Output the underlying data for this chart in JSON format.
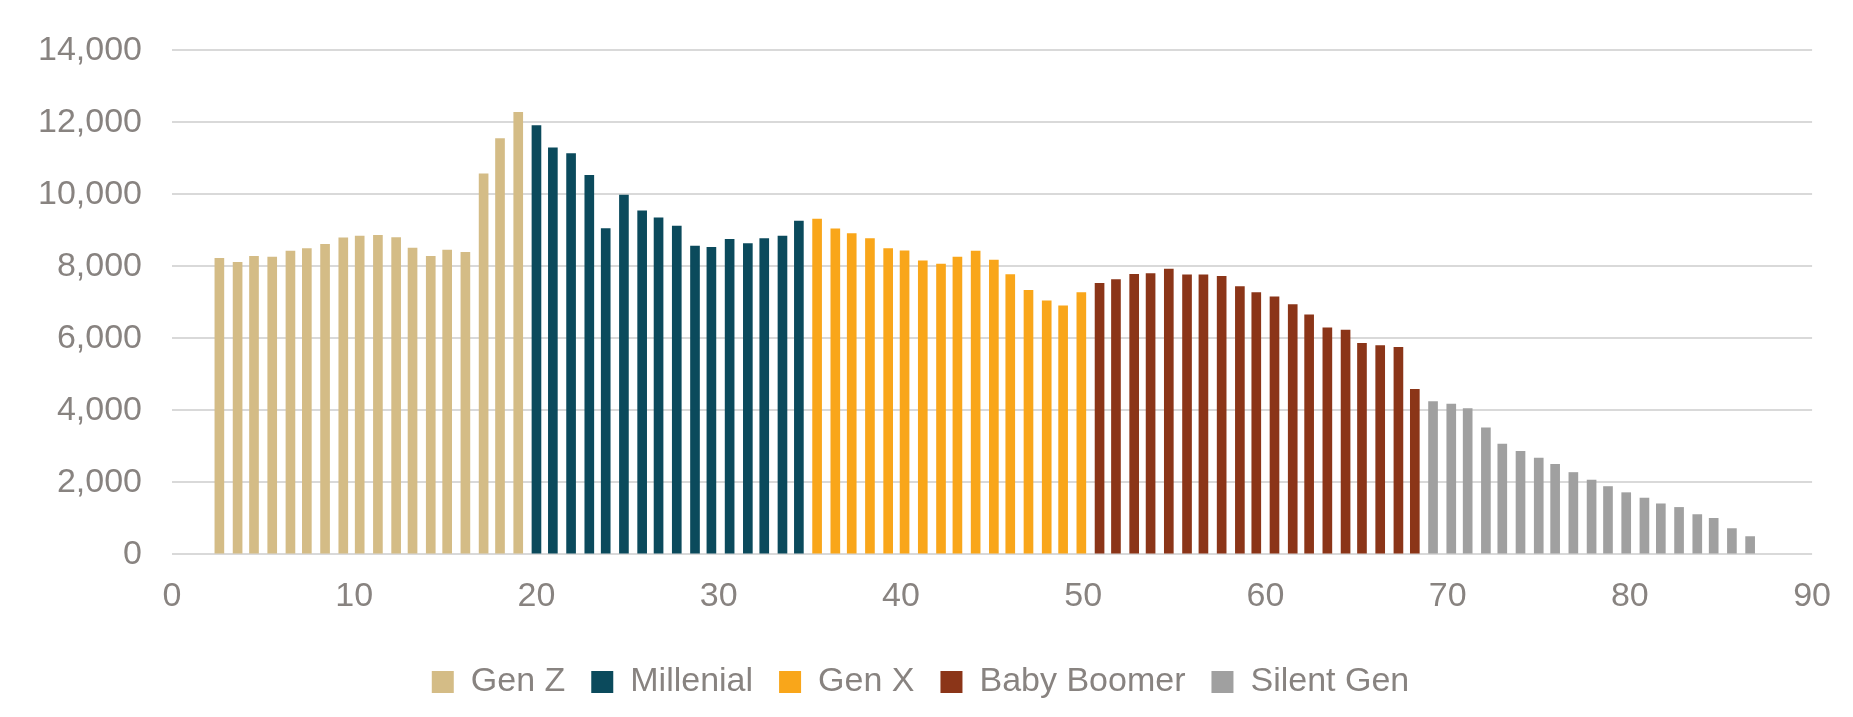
{
  "chart_data": {
    "type": "bar",
    "xlim": [
      0,
      90
    ],
    "xticks": [
      0,
      10,
      20,
      30,
      40,
      50,
      60,
      70,
      80,
      90
    ],
    "ylim": [
      0,
      14000
    ],
    "yticks": [
      0,
      {
        "value": 2000,
        "label": "2,000"
      },
      {
        "value": 4000,
        "label": "4,000"
      },
      {
        "value": 6000,
        "label": "6,000"
      },
      {
        "value": 8000,
        "label": "8,000"
      },
      {
        "value": 10000,
        "label": "10,000"
      },
      {
        "value": 12000,
        "label": "12,000"
      },
      {
        "value": 14000,
        "label": "14,000"
      }
    ],
    "grid": "y",
    "legend": "bottom",
    "series": [
      {
        "name": "Gen Z",
        "color": "#d4bc86",
        "x": [
          2.6,
          3.6,
          4.5,
          5.5,
          6.5,
          7.4,
          8.4,
          9.4,
          10.3,
          11.3,
          12.3,
          13.2,
          14.2,
          15.1,
          16.1,
          17.1,
          18.0,
          19.0
        ],
        "values": [
          8220,
          8110,
          8280,
          8260,
          8420,
          8490,
          8610,
          8790,
          8840,
          8860,
          8800,
          8510,
          8280,
          8450,
          8390,
          10570,
          11550,
          12280
        ]
      },
      {
        "name": "Millenial",
        "color": "#0b4a5c",
        "x": [
          20.0,
          20.9,
          21.9,
          22.9,
          23.8,
          24.8,
          25.8,
          26.7,
          27.7,
          28.7,
          29.6,
          30.6,
          31.6,
          32.5,
          33.5,
          34.4
        ],
        "values": [
          11910,
          11290,
          11130,
          10530,
          9050,
          9980,
          9540,
          9350,
          9120,
          8560,
          8530,
          8750,
          8630,
          8770,
          8840,
          9260
        ]
      },
      {
        "name": "Gen X",
        "color": "#f9a61a",
        "x": [
          35.4,
          36.4,
          37.3,
          38.3,
          39.3,
          40.2,
          41.2,
          42.2,
          43.1,
          44.1,
          45.1,
          46.0,
          47.0,
          48.0,
          48.9,
          49.9
        ],
        "values": [
          9310,
          9040,
          8910,
          8770,
          8490,
          8430,
          8150,
          8060,
          8260,
          8420,
          8170,
          7770,
          7330,
          7040,
          6900,
          7270
        ]
      },
      {
        "name": "Baby Boomer",
        "color": "#8b3518",
        "x": [
          50.9,
          51.8,
          52.8,
          53.7,
          54.7,
          55.7,
          56.6,
          57.6,
          58.6,
          59.5,
          60.5,
          61.5,
          62.4,
          63.4,
          64.4,
          65.3,
          66.3,
          67.3,
          68.2
        ],
        "values": [
          7530,
          7630,
          7780,
          7800,
          7920,
          7760,
          7760,
          7720,
          7440,
          7270,
          7150,
          6940,
          6650,
          6290,
          6230,
          5860,
          5800,
          5750,
          4580
        ]
      },
      {
        "name": "Silent Gen",
        "color": "#a0a0a0",
        "x": [
          69.2,
          70.2,
          71.1,
          72.1,
          73.0,
          74.0,
          75.0,
          75.9,
          76.9,
          77.9,
          78.8,
          79.8,
          80.8,
          81.7,
          82.7,
          83.7,
          84.6,
          85.6,
          86.6
        ],
        "values": [
          4240,
          4170,
          4050,
          3510,
          3060,
          2860,
          2670,
          2500,
          2270,
          2060,
          1880,
          1710,
          1560,
          1400,
          1300,
          1100,
          1000,
          710,
          490
        ]
      }
    ]
  }
}
